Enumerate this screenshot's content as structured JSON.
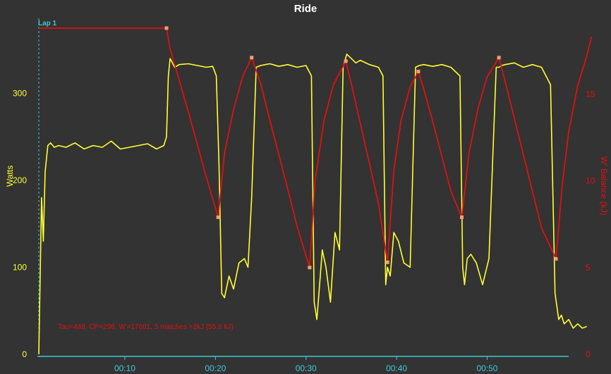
{
  "colors": {
    "background": "#333333",
    "power": "#ffff33",
    "wbal": "#e01010",
    "axis_x": "#3fc8d8",
    "title": "#ffffff",
    "lap": "#3fc8d8",
    "match_marker": "#f0a070"
  },
  "chart_data": {
    "type": "line",
    "title": "Ride",
    "grid": false,
    "xlabel": "",
    "x_ticks": [
      "00:10",
      "00:20",
      "00:30",
      "00:40",
      "00:50"
    ],
    "x_range_min": [
      0.5,
      59
    ],
    "y_left": {
      "label": "Watts",
      "range": [
        0,
        360
      ],
      "ticks": [
        "0",
        "100",
        "200",
        "300"
      ]
    },
    "y_right": {
      "label": "W' Balance (kJ)",
      "range": [
        0,
        19
      ],
      "ticks": [
        "0",
        "5",
        "10",
        "15"
      ]
    },
    "lap_marker": {
      "label": "Lap 1",
      "x_min": 0.5
    },
    "annotation": "Tau=448, CP=298, W'=17601, 5 matches >2kJ (55.6 kJ)",
    "series": [
      {
        "axis": "left",
        "x": [
          0.5,
          0.8,
          1.0,
          1.2,
          1.5,
          1.8,
          2.2,
          2.7,
          3.5,
          4.5,
          5.5,
          6.5,
          7.5,
          8.5,
          9.5,
          10.5,
          11.5,
          12.5,
          13.5,
          14.3,
          14.6,
          14.8,
          15.0,
          15.5,
          16,
          17,
          18,
          19,
          19.7,
          20.1,
          20.4,
          20.7,
          21,
          21.5,
          22,
          22.6,
          23.2,
          23.6,
          24,
          24.5,
          25,
          26,
          27,
          28,
          29,
          30,
          30.6,
          30.9,
          31.2,
          31.5,
          31.8,
          32.2,
          32.7,
          33.2,
          33.7,
          34.1,
          34.5,
          35,
          35.5,
          36,
          37,
          38,
          38.5,
          38.8,
          39.0,
          39.3,
          39.7,
          40.2,
          40.8,
          41.5,
          42.1,
          42.5,
          43,
          44,
          45,
          46,
          47,
          47.3,
          47.5,
          47.8,
          48.2,
          48.8,
          49.5,
          50.2,
          51,
          51.3,
          51.6,
          52,
          53,
          54,
          55,
          56,
          57,
          57.5,
          57.9,
          58.2,
          58.5,
          59.0,
          59.5,
          60.0,
          60.5,
          61.0
        ],
        "values": [
          0,
          180,
          130,
          210,
          240,
          243,
          238,
          240,
          238,
          243,
          236,
          240,
          238,
          245,
          236,
          238,
          240,
          242,
          236,
          240,
          250,
          320,
          340,
          330,
          333,
          334,
          332,
          330,
          331,
          320,
          215,
          70,
          65,
          90,
          75,
          105,
          110,
          100,
          180,
          330,
          332,
          334,
          331,
          333,
          330,
          332,
          320,
          60,
          40,
          80,
          120,
          100,
          60,
          140,
          120,
          330,
          345,
          340,
          335,
          338,
          333,
          330,
          320,
          80,
          100,
          90,
          140,
          130,
          105,
          100,
          330,
          332,
          333,
          331,
          333,
          330,
          320,
          100,
          80,
          110,
          115,
          105,
          80,
          110,
          330,
          330,
          332,
          333,
          335,
          330,
          333,
          330,
          310,
          70,
          40,
          45,
          35,
          40,
          30,
          35,
          30,
          32
        ]
      },
      {
        "axis": "right",
        "x": [
          0.5,
          14.6,
          15,
          16,
          17,
          18,
          19,
          20.3,
          21,
          22,
          23,
          24.0,
          25,
          26,
          27,
          28,
          29,
          30.4,
          31,
          32,
          33,
          34.4,
          35,
          36,
          37,
          38,
          39.0,
          39.7,
          40.5,
          41.5,
          42.4,
          43,
          44,
          45,
          46,
          47.2,
          48,
          49,
          50,
          51.3,
          52,
          53,
          54,
          55,
          56,
          57.6,
          58.3,
          59,
          60,
          61,
          62
        ],
        "values": [
          18.8,
          18.8,
          17.6,
          15.8,
          14.0,
          12.1,
          10.2,
          7.9,
          11.6,
          14.1,
          16.0,
          17.1,
          15.6,
          13.5,
          11.5,
          9.5,
          7.4,
          5.0,
          10.0,
          13.5,
          15.5,
          16.9,
          15.6,
          13.3,
          11.0,
          8.7,
          5.3,
          10.6,
          13.5,
          15.4,
          16.3,
          15.3,
          13.4,
          11.4,
          9.4,
          7.9,
          11.6,
          14.2,
          16.0,
          17.1,
          15.7,
          13.6,
          11.5,
          9.4,
          7.3,
          5.5,
          9.8,
          12.8,
          15.5,
          17.2,
          18.3
        ]
      }
    ],
    "match_points": {
      "x": [
        14.6,
        20.3,
        24.0,
        30.4,
        34.4,
        39.0,
        42.4,
        47.2,
        51.3,
        57.6
      ],
      "values": [
        18.8,
        7.9,
        17.1,
        5.0,
        16.9,
        5.3,
        16.3,
        7.9,
        17.1,
        5.5
      ]
    }
  }
}
